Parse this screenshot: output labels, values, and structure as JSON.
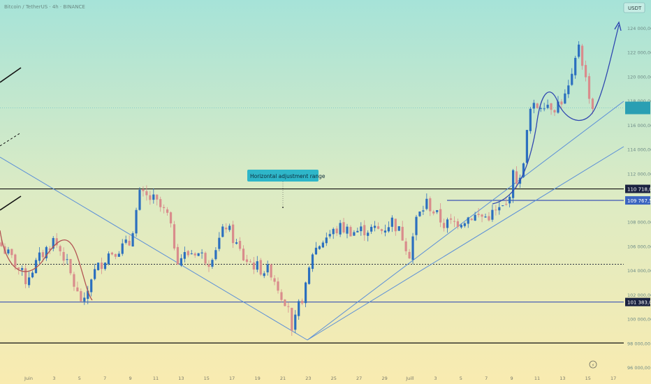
{
  "header": {
    "symbol_title": "Bitcoin / TetherUS · 4h · BINANCE",
    "currency": "USDT"
  },
  "annotation": {
    "range_label": "Horizontal adjustment range"
  },
  "colors": {
    "bg_top": "#a6e3d8",
    "bg_bottom": "#f9ebb0",
    "candle_up": "#2b6fbf",
    "candle_down": "#d98c8c",
    "level_line": "#111111",
    "blue_line": "#3c55b4",
    "trend_line": "#5b8fd8",
    "arrow_curve": "#2f47b0",
    "highlight_label": "#3a64c0",
    "dark_label": "#1a2240",
    "current_price_bg": "#2a9fb3"
  },
  "chart_data": {
    "type": "candlestick",
    "title": "Bitcoin / TetherUS · 4h · BINANCE",
    "currency": "USDT",
    "ylim": [
      96000,
      125000
    ],
    "y_ticks": [
      "124 000,00",
      "122 000,00",
      "120 000,00",
      "118 000,00",
      "116 000,00",
      "114 000,00",
      "112 000,00",
      "108 000,00",
      "106 000,00",
      "104 000,00",
      "102 000,00",
      "100 000,00",
      "98 000,00",
      "96 000,00"
    ],
    "x_ticks": [
      "Juin",
      "3",
      "5",
      "7",
      "9",
      "11",
      "13",
      "15",
      "17",
      "19",
      "21",
      "23",
      "25",
      "27",
      "29",
      "Juill",
      "3",
      "5",
      "7",
      "9",
      "11",
      "13",
      "15",
      "17"
    ],
    "key_levels": [
      {
        "value": 110718,
        "label": "110 718,00",
        "style": "dark"
      },
      {
        "value": 109767.59,
        "label": "109 767,59",
        "style": "blue"
      },
      {
        "value": 101383.07,
        "label": "101 383,07",
        "style": "dark"
      },
      {
        "value": 98000,
        "label": "",
        "style": "black"
      },
      {
        "value": 104500,
        "label": "",
        "style": "dotted"
      }
    ],
    "current_price": 117400,
    "annotation": "Horizontal adjustment range",
    "anchors": [
      {
        "t": 0,
        "p": 106000
      },
      {
        "t": 4,
        "p": 104600
      },
      {
        "t": 7,
        "p": 103200
      },
      {
        "t": 11,
        "p": 105000
      },
      {
        "t": 15,
        "p": 106500
      },
      {
        "t": 18,
        "p": 105200
      },
      {
        "t": 22,
        "p": 102000
      },
      {
        "t": 24,
        "p": 101200
      },
      {
        "t": 26,
        "p": 103500
      },
      {
        "t": 31,
        "p": 105400
      },
      {
        "t": 37,
        "p": 106200
      },
      {
        "t": 40,
        "p": 110200
      },
      {
        "t": 44,
        "p": 109800
      },
      {
        "t": 48,
        "p": 108500
      },
      {
        "t": 51,
        "p": 105000
      },
      {
        "t": 56,
        "p": 105600
      },
      {
        "t": 60,
        "p": 104800
      },
      {
        "t": 65,
        "p": 107700
      },
      {
        "t": 70,
        "p": 105000
      },
      {
        "t": 75,
        "p": 104100
      },
      {
        "t": 78,
        "p": 103900
      },
      {
        "t": 81,
        "p": 102000
      },
      {
        "t": 83,
        "p": 101200
      },
      {
        "t": 84,
        "p": 98600
      },
      {
        "t": 86,
        "p": 101000
      },
      {
        "t": 88,
        "p": 102500
      },
      {
        "t": 90,
        "p": 105500
      },
      {
        "t": 94,
        "p": 106800
      },
      {
        "t": 98,
        "p": 107500
      },
      {
        "t": 102,
        "p": 107200
      },
      {
        "t": 106,
        "p": 107400
      },
      {
        "t": 110,
        "p": 107300
      },
      {
        "t": 113,
        "p": 108100
      },
      {
        "t": 116,
        "p": 106800
      },
      {
        "t": 118,
        "p": 105400
      },
      {
        "t": 120,
        "p": 108200
      },
      {
        "t": 123,
        "p": 109600
      },
      {
        "t": 126,
        "p": 108500
      },
      {
        "t": 128,
        "p": 107800
      },
      {
        "t": 132,
        "p": 108000
      },
      {
        "t": 136,
        "p": 108500
      },
      {
        "t": 140,
        "p": 108400
      },
      {
        "t": 143,
        "p": 108800
      },
      {
        "t": 146,
        "p": 109300
      },
      {
        "t": 148,
        "p": 111800
      },
      {
        "t": 150,
        "p": 111300
      },
      {
        "t": 153,
        "p": 117200
      },
      {
        "t": 157,
        "p": 117900
      },
      {
        "t": 160,
        "p": 117500
      },
      {
        "t": 163,
        "p": 118300
      },
      {
        "t": 165,
        "p": 119700
      },
      {
        "t": 167,
        "p": 122800
      },
      {
        "t": 169,
        "p": 119700
      },
      {
        "t": 171,
        "p": 117400
      }
    ]
  }
}
